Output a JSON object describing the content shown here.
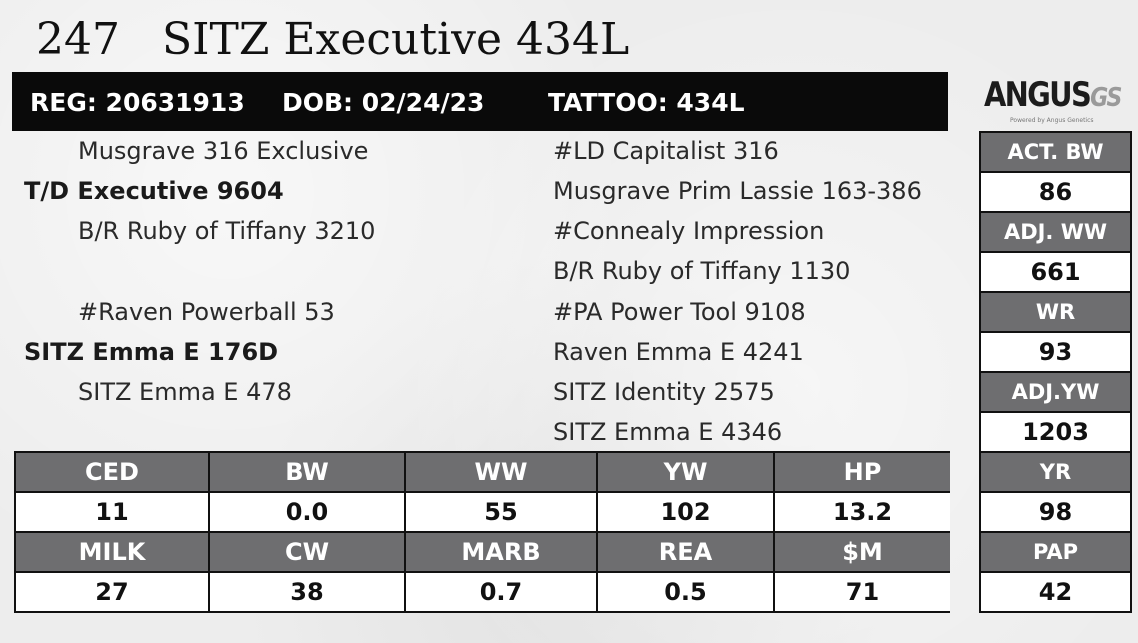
{
  "header": {
    "lot": "247",
    "name": "SITZ Executive 434L"
  },
  "info": {
    "reg": "REG: 20631913",
    "dob": "DOB: 02/24/23",
    "tattoo": "TATTOO: 434L"
  },
  "logo": {
    "word": "ANGUS",
    "suffix": "GS",
    "tagline": "Powered by Angus Genetics"
  },
  "pedigree": {
    "sire_sire": "Musgrave 316 Exclusive",
    "sire": "T/D Executive 9604",
    "sire_dam": "B/R Ruby of Tiffany 3210",
    "dam_sire": "#Raven Powerball 53",
    "dam": "SITZ Emma E 176D",
    "dam_dam": "SITZ Emma E 478",
    "ggp": [
      "#LD Capitalist 316",
      "Musgrave Prim Lassie 163-386",
      "#Connealy Impression",
      "B/R Ruby of Tiffany 1130",
      "#PA Power Tool 9108",
      "Raven Emma E 4241",
      "SITZ Identity 2575",
      "SITZ Emma E 4346"
    ]
  },
  "side_stats": [
    {
      "label": "ACT. BW",
      "value": "86"
    },
    {
      "label": "ADJ. WW",
      "value": "661"
    },
    {
      "label": "WR",
      "value": "93"
    },
    {
      "label": "ADJ.YW",
      "value": "1203"
    },
    {
      "label": "YR",
      "value": "98"
    },
    {
      "label": "PAP",
      "value": "42"
    }
  ],
  "epd_rows": [
    {
      "headers": [
        "CED",
        "BW",
        "WW",
        "YW",
        "HP"
      ],
      "values": [
        "11",
        "0.0",
        "55",
        "102",
        "13.2"
      ]
    },
    {
      "headers": [
        "MILK",
        "CW",
        "MARB",
        "REA",
        "$M"
      ],
      "values": [
        "27",
        "38",
        "0.7",
        "0.5",
        "71"
      ]
    }
  ],
  "colors": {
    "header_cell": "#6e6e70",
    "info_bar": "#0a0a0a"
  }
}
